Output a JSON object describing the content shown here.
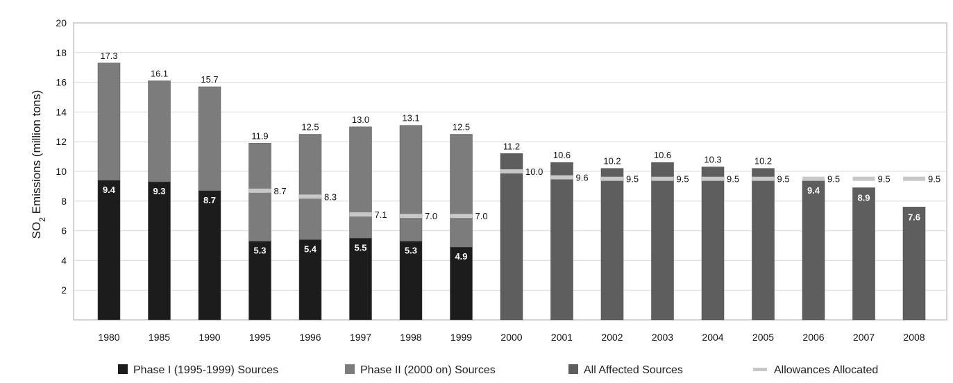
{
  "chart_data": {
    "type": "bar",
    "title": "",
    "ylabel": {
      "prefix": "SO",
      "sub": "2",
      "suffix": " Emissions (million tons)"
    },
    "xlabel": "",
    "ylim": [
      0,
      20
    ],
    "yticks": [
      2,
      4,
      6,
      8,
      10,
      12,
      14,
      16,
      18,
      20
    ],
    "grid": true,
    "legend_position": "bottom",
    "colors": {
      "phase1": "#1c1c1c",
      "phase2": "#7c7c7c",
      "all": "#5e5e5e",
      "allowance": "#c8c8c8",
      "grid": "#d9d9d9",
      "plot_border": "#a9a9a9",
      "plot_bg": "#ffffff"
    },
    "categories": [
      "1980",
      "1985",
      "1990",
      "1995",
      "1996",
      "1997",
      "1998",
      "1999",
      "2000",
      "2001",
      "2002",
      "2003",
      "2004",
      "2005",
      "2006",
      "2007",
      "2008"
    ],
    "series": [
      {
        "name": "Phase I (1995-1999) Sources",
        "key": "phase1",
        "values": [
          9.4,
          9.3,
          8.7,
          5.3,
          5.4,
          5.5,
          5.3,
          4.9,
          null,
          null,
          null,
          null,
          null,
          null,
          null,
          null,
          null
        ],
        "labels": [
          "9.4",
          "9.3",
          "8.7",
          "5.3",
          "5.4",
          "5.5",
          "5.3",
          "4.9",
          "",
          "",
          "",
          "",
          "",
          "",
          "",
          "",
          ""
        ]
      },
      {
        "name": "Phase II (2000 on) Sources",
        "key": "phase2",
        "values": [
          7.9,
          6.8,
          7.0,
          6.6,
          7.1,
          7.5,
          7.8,
          7.6,
          null,
          null,
          null,
          null,
          null,
          null,
          null,
          null,
          null
        ]
      },
      {
        "name": "All Affected Sources",
        "key": "all",
        "values": [
          null,
          null,
          null,
          null,
          null,
          null,
          null,
          null,
          11.2,
          10.6,
          10.2,
          10.6,
          10.3,
          10.2,
          9.4,
          8.9,
          7.6
        ],
        "labels": [
          "",
          "",
          "",
          "",
          "",
          "",
          "",
          "",
          "",
          "",
          "",
          "",
          "",
          "",
          "9.4",
          "8.9",
          "7.6"
        ]
      },
      {
        "name": "Allowances Allocated",
        "key": "allowance",
        "values": [
          null,
          null,
          null,
          8.7,
          8.3,
          7.1,
          7.0,
          7.0,
          10.0,
          9.6,
          9.5,
          9.5,
          9.5,
          9.5,
          9.5,
          9.5,
          9.5
        ],
        "labels": [
          "",
          "",
          "",
          "8.7",
          "8.3",
          "7.1",
          "7.0",
          "7.0",
          "10.0",
          "9.6",
          "9.5",
          "9.5",
          "9.5",
          "9.5",
          "9.5",
          "9.5",
          "9.5"
        ]
      }
    ],
    "totals": [
      "17.3",
      "16.1",
      "15.7",
      "11.9",
      "12.5",
      "13.0",
      "13.1",
      "12.5",
      "11.2",
      "10.6",
      "10.2",
      "10.6",
      "10.3",
      "10.2",
      "",
      "",
      ""
    ]
  }
}
